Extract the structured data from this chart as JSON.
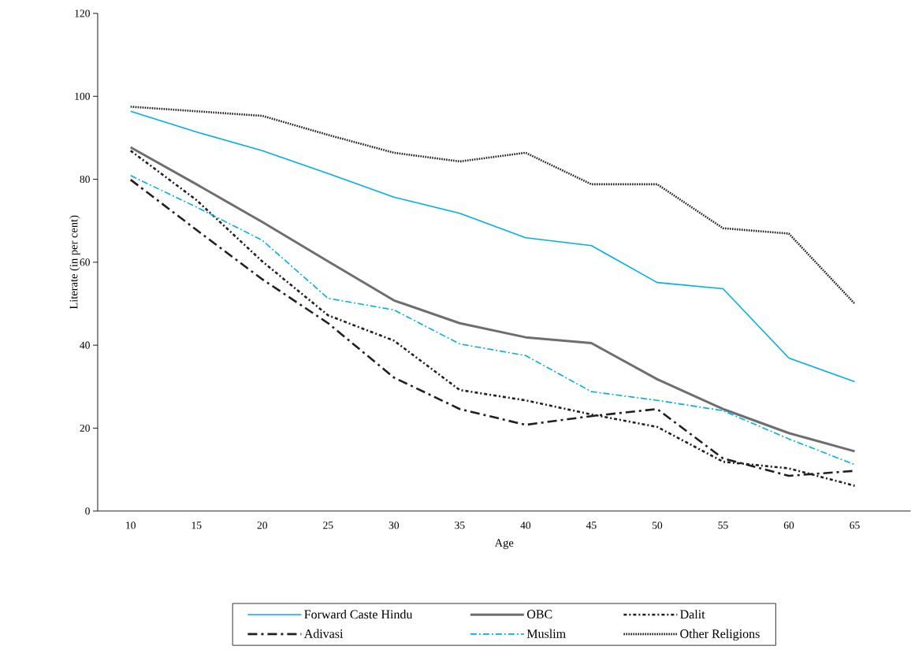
{
  "chart_data": {
    "type": "line",
    "xlabel": "Age",
    "ylabel": "Literate (in per cent)",
    "categories": [
      "10",
      "15",
      "20",
      "25",
      "30",
      "35",
      "40",
      "45",
      "50",
      "55",
      "60",
      "65"
    ],
    "ylim": [
      0,
      120
    ],
    "yticks": [
      0,
      20,
      40,
      60,
      80,
      100,
      120
    ],
    "legend": "bottom",
    "grid": false,
    "series": [
      {
        "name": "Forward Caste Hindu",
        "color": "#00aeef",
        "line_style": "solid",
        "values": [
          96.4,
          91.4,
          86.9,
          81.4,
          75.7,
          71.8,
          65.9,
          64,
          55.1,
          53.6,
          36.9,
          31.2
        ]
      },
      {
        "name": "OBC",
        "color": "#6d6e71",
        "line_style": "solid",
        "values": [
          87.7,
          78.8,
          69.7,
          60.2,
          50.8,
          45.3,
          41.9,
          40.5,
          31.8,
          24.6,
          18.8,
          14.4
        ]
      },
      {
        "name": "Dalit",
        "color": "#231f20",
        "line_style": "dashdot",
        "values": [
          86.9,
          75,
          60.2,
          47.2,
          41.1,
          29.2,
          26.7,
          23.3,
          20.3,
          11.9,
          10.3,
          6.1
        ]
      },
      {
        "name": "Adivasi",
        "color": "#231f20",
        "line_style": "dashdot",
        "values": [
          79.9,
          67.8,
          55.9,
          45.3,
          32.2,
          24.6,
          20.8,
          22.9,
          24.6,
          12.7,
          8.5,
          9.7
        ]
      },
      {
        "name": "Muslim",
        "color": "#00aeef",
        "line_style": "dashdot",
        "values": [
          80.9,
          73.3,
          65.3,
          51.3,
          48.5,
          40.3,
          37.5,
          28.8,
          26.7,
          24.2,
          17.4,
          11.2
        ]
      },
      {
        "name": "Other Religions",
        "color": "#231f20",
        "line_style": "dotted",
        "values": [
          97.5,
          96.4,
          95.3,
          90.7,
          86.4,
          84.3,
          86.4,
          78.8,
          78.8,
          68.2,
          66.9,
          50
        ]
      }
    ]
  }
}
